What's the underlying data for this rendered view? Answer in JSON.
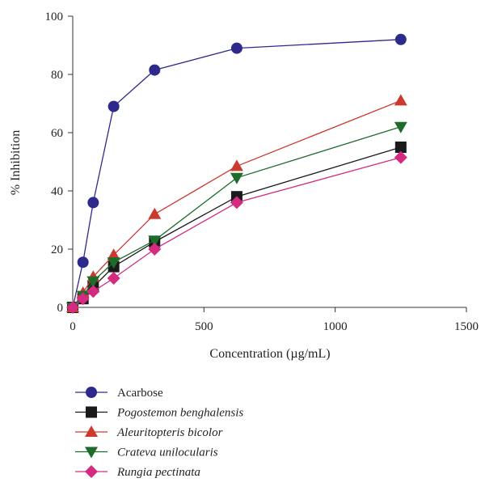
{
  "chart_data": {
    "type": "line",
    "title": "",
    "xlabel": "Concentration (µg/mL)",
    "ylabel": "% Inhibition",
    "xlim": [
      0,
      1500
    ],
    "ylim": [
      0,
      100
    ],
    "xticks": [
      0,
      500,
      1000,
      1500
    ],
    "yticks": [
      0,
      20,
      40,
      60,
      80,
      100
    ],
    "grid": false,
    "legend_position": "bottom",
    "x": [
      0,
      39,
      78,
      156,
      312,
      625,
      1250
    ],
    "series": [
      {
        "name": "Acarbose",
        "italic": false,
        "marker": "circle",
        "color": "#2e2a8c",
        "values": [
          0,
          15.5,
          36,
          69,
          81.5,
          89,
          92
        ]
      },
      {
        "name": "Pogostemon benghalensis",
        "italic": true,
        "marker": "square",
        "color": "#1a1a1a",
        "values": [
          0,
          3,
          7,
          14,
          22.5,
          38,
          55
        ]
      },
      {
        "name": "Aleuritopteris bicolor",
        "italic": true,
        "marker": "triangle-up",
        "color": "#cc3a2e",
        "values": [
          0,
          5,
          10.5,
          18,
          32,
          48.5,
          71
        ]
      },
      {
        "name": "Crateva unilocularis",
        "italic": true,
        "marker": "triangle-down",
        "color": "#1e6b2b",
        "values": [
          0,
          4,
          9,
          15.5,
          23,
          44.5,
          62
        ]
      },
      {
        "name": "Rungia pectinata",
        "italic": true,
        "marker": "diamond",
        "color": "#d42a80",
        "values": [
          0,
          3,
          5.5,
          10,
          20,
          36,
          51.5
        ]
      }
    ]
  }
}
